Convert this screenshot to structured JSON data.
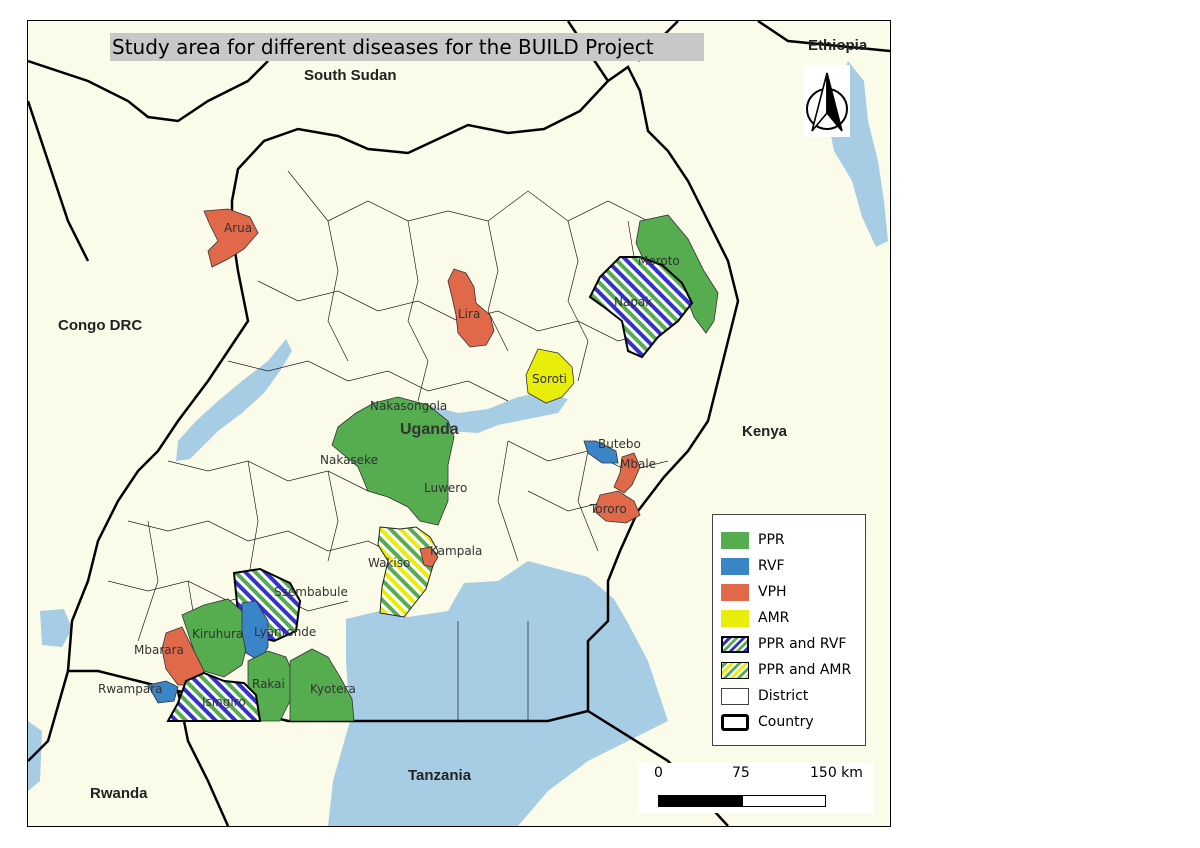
{
  "title": "Study area for different diseases for the BUILD Project",
  "countries": {
    "south_sudan": "South Sudan",
    "ethiopia": "Ethiopia",
    "congo": "Congo DRC",
    "kenya": "Kenya",
    "tanzania": "Tanzania",
    "rwanda": "Rwanda",
    "uganda": "Uganda"
  },
  "districts": {
    "arua": "Arua",
    "moroto": "Moroto",
    "napak": "Napak",
    "lira": "Lira",
    "soroti": "Soroti",
    "nakasongola": "Nakasongola",
    "nakaseke": "Nakaseke",
    "luwero": "Luwero",
    "butebo": "Butebo",
    "mbale": "Mbale",
    "tororo": "Tororo",
    "kampala": "Kampala",
    "wakiso": "Wakiso",
    "ssembabule": "Ssembabule",
    "kiruhura": "Kiruhura",
    "lyantonde": "Lyantonde",
    "mbarara": "Mbarara",
    "rwampara": "Rwampara",
    "rakai": "Rakai",
    "kyotera": "Kyotera",
    "isingiro": "Isingiro"
  },
  "legend": {
    "items": [
      {
        "label": "PPR",
        "style": "solid",
        "color": "#55ad50"
      },
      {
        "label": "RVF",
        "style": "solid",
        "color": "#3a85c8"
      },
      {
        "label": "VPH",
        "style": "solid",
        "color": "#e0694a"
      },
      {
        "label": "AMR",
        "style": "solid",
        "color": "#e8ee0a"
      },
      {
        "label": "PPR and RVF",
        "style": "hatch",
        "color": "#3333cc"
      },
      {
        "label": "PPR and AMR",
        "style": "hatch",
        "color": "#e8ee0a"
      },
      {
        "label": "District",
        "style": "district",
        "color": "#ffffff"
      },
      {
        "label": "Country",
        "style": "country",
        "color": "#ffffff"
      }
    ]
  },
  "scale": {
    "ticks": [
      "0",
      "75",
      "150 km"
    ]
  },
  "colors": {
    "ppr": "#55ad50",
    "rvf": "#3a85c8",
    "vph": "#e0694a",
    "amr": "#e8ee0a",
    "water": "#a7cde5",
    "land": "#fbfbe9"
  }
}
